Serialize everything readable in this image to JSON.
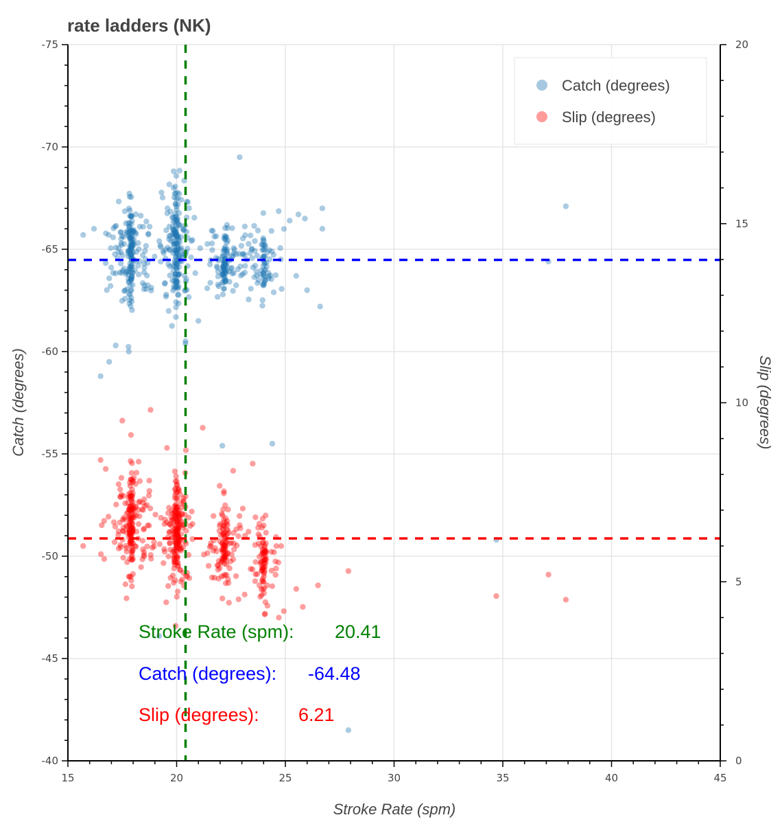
{
  "chart_data": {
    "type": "scatter",
    "title": "rate ladders (NK)",
    "xlabel": "Stroke Rate (spm)",
    "ylabel_left": "Catch (degrees)",
    "ylabel_right": "Slip (degrees)",
    "xlim": [
      15,
      45
    ],
    "ylim_left": [
      -75,
      -40
    ],
    "ylim_right": [
      20,
      0
    ],
    "x_ticks": [
      15,
      20,
      25,
      30,
      35,
      40,
      45
    ],
    "x_tick_labels": [
      "15",
      "20",
      "25",
      "30",
      "35",
      "40",
      "45"
    ],
    "y_left_ticks": [
      -75,
      -70,
      -65,
      -60,
      -55,
      -50,
      -45,
      -40
    ],
    "y_left_tick_labels": [
      "-75",
      "-70",
      "-65",
      "-60",
      "-55",
      "-50",
      "-45",
      "-40"
    ],
    "y_right_ticks": [
      20,
      15,
      10,
      5,
      0
    ],
    "y_right_tick_labels": [
      "20",
      "15",
      "10",
      "5",
      "0"
    ],
    "grid": true,
    "legend": {
      "placement": "top-right",
      "entries": [
        {
          "label": "Catch (degrees)",
          "color": "#a6c8e0"
        },
        {
          "label": "Slip (degrees)",
          "color": "#ff9b9b"
        }
      ]
    },
    "series": [
      {
        "name": "Catch (degrees)",
        "axis": "left",
        "color": "#1f77b4",
        "clusters": [
          {
            "x": 17.9,
            "y": -64.8,
            "sx": 0.55,
            "sy": 1.2,
            "n": 190
          },
          {
            "x": 20.0,
            "y": -65.0,
            "sx": 0.35,
            "sy": 1.5,
            "n": 200
          },
          {
            "x": 22.2,
            "y": -64.4,
            "sx": 0.5,
            "sy": 0.9,
            "n": 120
          },
          {
            "x": 24.0,
            "y": -64.2,
            "sx": 0.5,
            "sy": 0.9,
            "n": 80
          }
        ],
        "outliers": [
          [
            22.9,
            -69.5
          ],
          [
            37.9,
            -67.1
          ],
          [
            37.1,
            -64.4
          ],
          [
            26.6,
            -62.2
          ],
          [
            26.7,
            -66.0
          ],
          [
            26.7,
            -67.0
          ],
          [
            25.5,
            -63.7
          ],
          [
            26.0,
            -63.0
          ],
          [
            16.5,
            -58.8
          ],
          [
            17.2,
            -60.3
          ],
          [
            17.8,
            -60.0
          ],
          [
            16.9,
            -59.5
          ],
          [
            22.1,
            -55.4
          ],
          [
            24.4,
            -55.5
          ],
          [
            34.7,
            -50.8
          ],
          [
            19.2,
            -46.1
          ],
          [
            27.9,
            -41.5
          ],
          [
            15.7,
            -65.7
          ],
          [
            16.2,
            -66.0
          ],
          [
            21.0,
            -61.5
          ],
          [
            25.2,
            -66.4
          ],
          [
            25.6,
            -66.7
          ],
          [
            25.9,
            -66.5
          ]
        ]
      },
      {
        "name": "Slip (degrees)",
        "axis": "right",
        "color": "#ff0000",
        "clusters": [
          {
            "x": 17.9,
            "y": 6.6,
            "sx": 0.55,
            "sy": 0.75,
            "n": 200
          },
          {
            "x": 20.0,
            "y": 6.4,
            "sx": 0.35,
            "sy": 0.7,
            "n": 200
          },
          {
            "x": 22.2,
            "y": 5.9,
            "sx": 0.55,
            "sy": 0.6,
            "n": 120
          },
          {
            "x": 24.0,
            "y": 5.5,
            "sx": 0.5,
            "sy": 0.6,
            "n": 90
          }
        ],
        "outliers": [
          [
            27.9,
            5.3
          ],
          [
            34.7,
            4.6
          ],
          [
            37.1,
            5.2
          ],
          [
            37.9,
            4.5
          ],
          [
            21.2,
            9.3
          ],
          [
            18.8,
            9.8
          ],
          [
            17.5,
            9.5
          ],
          [
            17.9,
            9.1
          ],
          [
            15.7,
            6.0
          ],
          [
            16.5,
            8.4
          ],
          [
            26.5,
            4.9
          ],
          [
            25.8,
            4.3
          ],
          [
            25.5,
            4.8
          ],
          [
            24.7,
            4.0
          ],
          [
            23.5,
            8.3
          ],
          [
            22.6,
            8.1
          ]
        ]
      }
    ],
    "reference_lines": [
      {
        "orientation": "vertical",
        "axis": "x",
        "value": 20.41,
        "color": "#008000",
        "style": "dashed"
      },
      {
        "orientation": "horizontal",
        "axis": "left",
        "value": -64.48,
        "color": "#0000ff",
        "style": "dashed"
      },
      {
        "orientation": "horizontal",
        "axis": "right",
        "value": 6.21,
        "color": "#ff0000",
        "style": "dashed"
      }
    ],
    "annotations": [
      {
        "label": "Stroke Rate (spm):",
        "value": "20.41",
        "color": "#008000"
      },
      {
        "label": "Catch (degrees):",
        "value": "-64.48",
        "color": "#0000ff"
      },
      {
        "label": "Slip (degrees):",
        "value": "6.21",
        "color": "#ff0000"
      }
    ]
  }
}
